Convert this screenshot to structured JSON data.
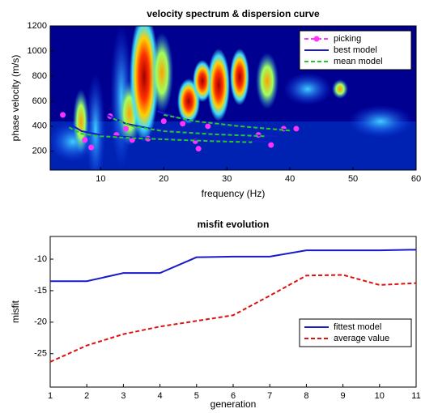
{
  "chart_data": [
    {
      "type": "line",
      "title": "velocity spectrum & dispersion curve",
      "xlabel": "frequency (Hz)",
      "ylabel": "phase velocity (m/s)",
      "xlim": [
        2,
        60
      ],
      "ylim": [
        50,
        1200
      ],
      "xticks": [
        10,
        20,
        30,
        40,
        50,
        60
      ],
      "yticks": [
        200,
        400,
        600,
        800,
        1000,
        1200
      ],
      "legend": "upper right",
      "grid": false,
      "series": [
        {
          "name": "picking",
          "color": "#ff33ff",
          "marker": true,
          "line": false,
          "x": [
            4,
            7.5,
            8.5,
            11.5,
            12.5,
            14,
            15,
            17.5,
            20,
            23,
            25,
            25.5,
            27,
            35,
            37,
            39,
            41
          ],
          "values": [
            490,
            290,
            230,
            480,
            330,
            380,
            290,
            300,
            440,
            420,
            280,
            220,
            400,
            330,
            250,
            380,
            380
          ]
        },
        {
          "name": "best model",
          "color": "#1a1acc",
          "marker": false,
          "line": true,
          "dash": false,
          "x": [
            5,
            7,
            10,
            15,
            20,
            30,
            37,
            null,
            11,
            14,
            18,
            25,
            32,
            38,
            null,
            19,
            22,
            26,
            32,
            40
          ],
          "values": [
            420,
            360,
            330,
            310,
            300,
            285,
            275,
            null,
            490,
            420,
            380,
            350,
            330,
            320,
            null,
            520,
            470,
            430,
            400,
            370
          ]
        },
        {
          "name": "mean model",
          "color": "#22cc22",
          "marker": false,
          "line": true,
          "dash": true,
          "x": [
            5,
            7,
            10,
            15,
            20,
            28,
            34,
            null,
            12,
            15,
            20,
            28,
            36,
            null,
            20,
            25,
            32,
            40
          ],
          "values": [
            390,
            340,
            320,
            305,
            295,
            280,
            272,
            null,
            460,
            400,
            360,
            335,
            320,
            null,
            490,
            440,
            400,
            365
          ]
        }
      ]
    },
    {
      "type": "line",
      "title": "misfit evolution",
      "xlabel": "generation",
      "ylabel": "misfit",
      "xlim": [
        1,
        11
      ],
      "ylim": [
        -30.3,
        -6.4
      ],
      "xticks": [
        1,
        2,
        3,
        4,
        5,
        6,
        7,
        8,
        9,
        10,
        11
      ],
      "yticks": [
        -25,
        -20,
        -15,
        -10
      ],
      "legend": "lower right",
      "grid": false,
      "series": [
        {
          "name": "fittest model",
          "color": "#1a1acc",
          "marker": false,
          "line": true,
          "dash": false,
          "x": [
            1,
            2,
            3,
            4,
            5,
            6,
            7,
            8,
            9,
            10,
            11
          ],
          "values": [
            -13.5,
            -13.5,
            -12.2,
            -12.2,
            -9.7,
            -9.6,
            -9.6,
            -8.6,
            -8.6,
            -8.6,
            -8.5
          ]
        },
        {
          "name": "average value",
          "color": "#dd1111",
          "marker": false,
          "line": true,
          "dash": true,
          "x": [
            1,
            2,
            3,
            4,
            5,
            6,
            7,
            8,
            9,
            10,
            11
          ],
          "values": [
            -26.3,
            -23.7,
            -21.9,
            -20.7,
            -19.8,
            -18.9,
            -15.8,
            -12.6,
            -12.5,
            -14.1,
            -13.8
          ]
        }
      ]
    }
  ]
}
